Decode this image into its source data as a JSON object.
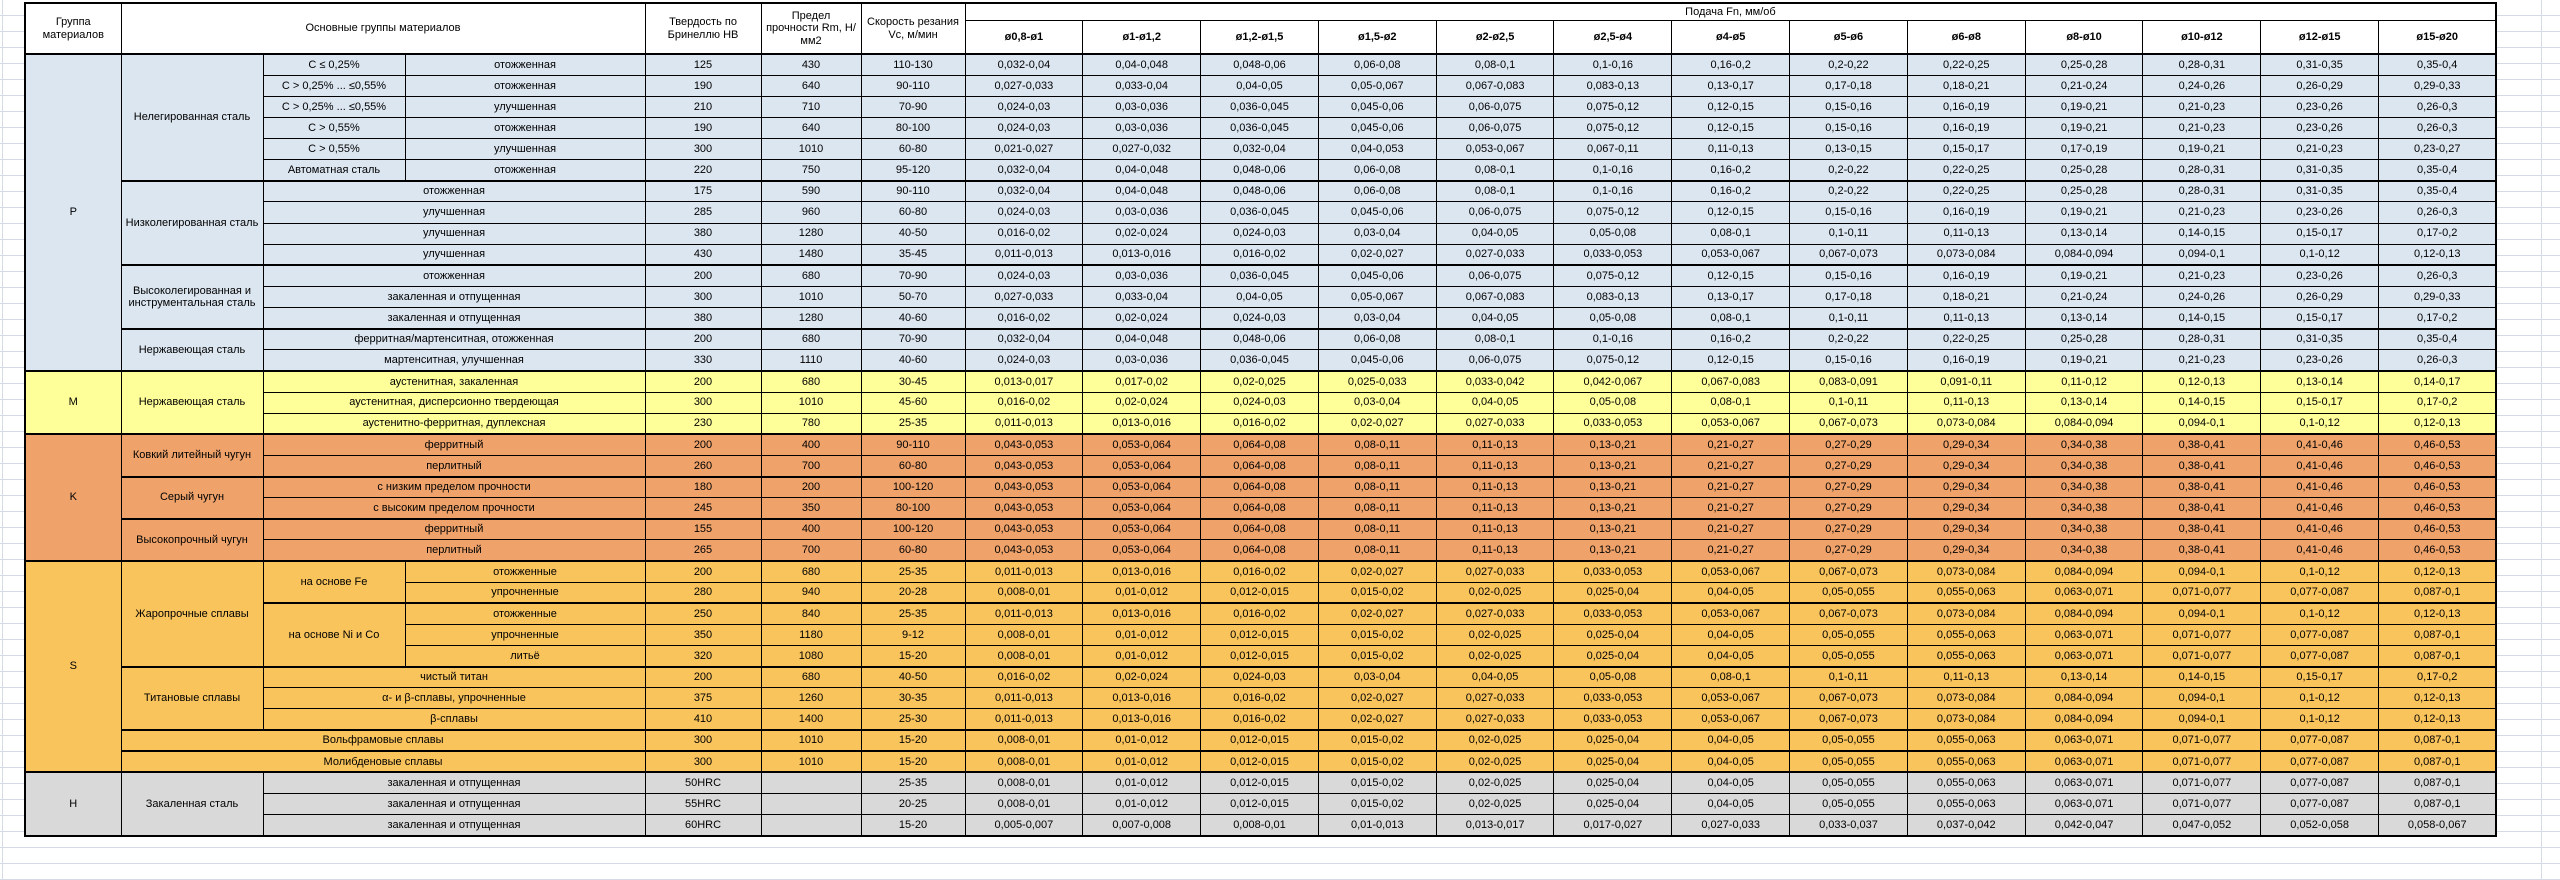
{
  "sheet": {
    "background": "#ffffff",
    "gridline_color": "#d4dbe4"
  },
  "table": {
    "header": {
      "group": "Группа материалов",
      "materials": "Основные группы материалов",
      "hardness": "Твердость по Бринеллю HB",
      "strength": "Предел прочности Rm, Н/мм2",
      "speed": "Скорость резания Vc, м/мин",
      "feed_title": "Подача Fn, мм/об",
      "feed_cols": [
        "ø0,8-ø1",
        "ø1-ø1,2",
        "ø1,2-ø1,5",
        "ø1,5-ø2",
        "ø2-ø2,5",
        "ø2,5-ø4",
        "ø4-ø5",
        "ø5-ø6",
        "ø6-ø8",
        "ø8-ø10",
        "ø10-ø12",
        "ø12-ø15",
        "ø15-ø20"
      ]
    },
    "colors": {
      "P": "#DCE6F1",
      "M": "#FFFF99",
      "K": "#EFA36B",
      "S": "#FAC45D",
      "H": "#D9D9D9"
    },
    "feed_sets": {
      "F1": [
        "0,032-0,04",
        "0,04-0,048",
        "0,048-0,06",
        "0,06-0,08",
        "0,08-0,1",
        "0,1-0,16",
        "0,16-0,2",
        "0,2-0,22",
        "0,22-0,25",
        "0,25-0,28",
        "0,28-0,31",
        "0,31-0,35",
        "0,35-0,4"
      ],
      "F2": [
        "0,027-0,033",
        "0,033-0,04",
        "0,04-0,05",
        "0,05-0,067",
        "0,067-0,083",
        "0,083-0,13",
        "0,13-0,17",
        "0,17-0,18",
        "0,18-0,21",
        "0,21-0,24",
        "0,24-0,26",
        "0,26-0,29",
        "0,29-0,33"
      ],
      "F3": [
        "0,024-0,03",
        "0,03-0,036",
        "0,036-0,045",
        "0,045-0,06",
        "0,06-0,075",
        "0,075-0,12",
        "0,12-0,15",
        "0,15-0,16",
        "0,16-0,19",
        "0,19-0,21",
        "0,21-0,23",
        "0,23-0,26",
        "0,26-0,3"
      ],
      "F4": [
        "0,021-0,027",
        "0,027-0,032",
        "0,032-0,04",
        "0,04-0,053",
        "0,053-0,067",
        "0,067-0,11",
        "0,11-0,13",
        "0,13-0,15",
        "0,15-0,17",
        "0,17-0,19",
        "0,19-0,21",
        "0,21-0,23",
        "0,23-0,27"
      ],
      "F5": [
        "0,016-0,02",
        "0,02-0,024",
        "0,024-0,03",
        "0,03-0,04",
        "0,04-0,05",
        "0,05-0,08",
        "0,08-0,1",
        "0,1-0,11",
        "0,11-0,13",
        "0,13-0,14",
        "0,14-0,15",
        "0,15-0,17",
        "0,17-0,2"
      ],
      "F6": [
        "0,011-0,013",
        "0,013-0,016",
        "0,016-0,02",
        "0,02-0,027",
        "0,027-0,033",
        "0,033-0,053",
        "0,053-0,067",
        "0,067-0,073",
        "0,073-0,084",
        "0,084-0,094",
        "0,094-0,1",
        "0,1-0,12",
        "0,12-0,13"
      ],
      "FM1": [
        "0,013-0,017",
        "0,017-0,02",
        "0,02-0,025",
        "0,025-0,033",
        "0,033-0,042",
        "0,042-0,067",
        "0,067-0,083",
        "0,083-0,091",
        "0,091-0,11",
        "0,11-0,12",
        "0,12-0,13",
        "0,13-0,14",
        "0,14-0,17"
      ],
      "FK": [
        "0,043-0,053",
        "0,053-0,064",
        "0,064-0,08",
        "0,08-0,11",
        "0,11-0,13",
        "0,13-0,21",
        "0,21-0,27",
        "0,27-0,29",
        "0,29-0,34",
        "0,34-0,38",
        "0,38-0,41",
        "0,41-0,46",
        "0,46-0,53"
      ],
      "FS2": [
        "0,008-0,01",
        "0,01-0,012",
        "0,012-0,015",
        "0,015-0,02",
        "0,02-0,025",
        "0,025-0,04",
        "0,04-0,05",
        "0,05-0,055",
        "0,055-0,063",
        "0,063-0,071",
        "0,071-0,077",
        "0,077-0,087",
        "0,087-0,1"
      ],
      "FH3": [
        "0,005-0,007",
        "0,007-0,008",
        "0,008-0,01",
        "0,01-0,013",
        "0,013-0,017",
        "0,017-0,027",
        "0,027-0,033",
        "0,033-0,037",
        "0,037-0,042",
        "0,042-0,047",
        "0,047-0,052",
        "0,052-0,058",
        "0,058-0,067"
      ]
    },
    "rows": [
      {
        "g": "P",
        "c": [
          {
            "t": "P",
            "rs": 15,
            "n": "group-label-p"
          },
          {
            "t": "Нелегированная сталь",
            "rs": 6
          },
          {
            "t": "C ≤ 0,25%"
          },
          {
            "t": "отожженная"
          }
        ],
        "v": [
          "125",
          "430",
          "110-130"
        ],
        "f": "F1"
      },
      {
        "g": "P",
        "c": [
          {
            "t": "C > 0,25% ... ≤0,55%"
          },
          {
            "t": "отожженная"
          }
        ],
        "v": [
          "190",
          "640",
          "90-110"
        ],
        "f": "F2"
      },
      {
        "g": "P",
        "c": [
          {
            "t": "C > 0,25% ... ≤0,55%"
          },
          {
            "t": "улучшенная"
          }
        ],
        "v": [
          "210",
          "710",
          "70-90"
        ],
        "f": "F3"
      },
      {
        "g": "P",
        "c": [
          {
            "t": "C > 0,55%"
          },
          {
            "t": "отожженная"
          }
        ],
        "v": [
          "190",
          "640",
          "80-100"
        ],
        "f": "F3"
      },
      {
        "g": "P",
        "c": [
          {
            "t": "C > 0,55%"
          },
          {
            "t": "улучшенная"
          }
        ],
        "v": [
          "300",
          "1010",
          "60-80"
        ],
        "f": "F4"
      },
      {
        "g": "P",
        "c": [
          {
            "t": "Автоматная сталь"
          },
          {
            "t": "отожженная"
          }
        ],
        "v": [
          "220",
          "750",
          "95-120"
        ],
        "f": "F1"
      },
      {
        "g": "P",
        "t2": 1,
        "c": [
          {
            "t": "Низколегированная сталь",
            "rs": 4
          },
          {
            "t": "отожженная",
            "cs": 2
          }
        ],
        "v": [
          "175",
          "590",
          "90-110"
        ],
        "f": "F1"
      },
      {
        "g": "P",
        "c": [
          {
            "t": "улучшенная",
            "cs": 2
          }
        ],
        "v": [
          "285",
          "960",
          "60-80"
        ],
        "f": "F3"
      },
      {
        "g": "P",
        "c": [
          {
            "t": "улучшенная",
            "cs": 2
          }
        ],
        "v": [
          "380",
          "1280",
          "40-50"
        ],
        "f": "F5"
      },
      {
        "g": "P",
        "c": [
          {
            "t": "улучшенная",
            "cs": 2
          }
        ],
        "v": [
          "430",
          "1480",
          "35-45"
        ],
        "f": "F6"
      },
      {
        "g": "P",
        "t2": 1,
        "c": [
          {
            "t": "Высоколегированная и инструментальная сталь",
            "rs": 3
          },
          {
            "t": "отожженная",
            "cs": 2
          }
        ],
        "v": [
          "200",
          "680",
          "70-90"
        ],
        "f": "F3"
      },
      {
        "g": "P",
        "c": [
          {
            "t": "закаленная и отпущенная",
            "cs": 2
          }
        ],
        "v": [
          "300",
          "1010",
          "50-70"
        ],
        "f": "F2"
      },
      {
        "g": "P",
        "c": [
          {
            "t": "закаленная и отпущенная",
            "cs": 2
          }
        ],
        "v": [
          "380",
          "1280",
          "40-60"
        ],
        "f": "F5"
      },
      {
        "g": "P",
        "t2": 1,
        "c": [
          {
            "t": "Нержавеющая сталь",
            "rs": 2
          },
          {
            "t": "ферритная/мартенситная, отожженная",
            "cs": 2
          }
        ],
        "v": [
          "200",
          "680",
          "70-90"
        ],
        "f": "F1"
      },
      {
        "g": "P",
        "c": [
          {
            "t": "мартенситная, улучшенная",
            "cs": 2
          }
        ],
        "v": [
          "330",
          "1110",
          "40-60"
        ],
        "f": "F3"
      },
      {
        "g": "M",
        "t2": 1,
        "c": [
          {
            "t": "M",
            "rs": 3,
            "n": "group-label-m"
          },
          {
            "t": "Нержавеющая сталь",
            "rs": 3
          },
          {
            "t": "аустенитная, закаленная",
            "cs": 2
          }
        ],
        "v": [
          "200",
          "680",
          "30-45"
        ],
        "f": "FM1"
      },
      {
        "g": "M",
        "c": [
          {
            "t": "аустенитная, дисперсионно твердеющая",
            "cs": 2
          }
        ],
        "v": [
          "300",
          "1010",
          "45-60"
        ],
        "f": "F5"
      },
      {
        "g": "M",
        "c": [
          {
            "t": "аустенитно-ферритная, дуплексная",
            "cs": 2
          }
        ],
        "v": [
          "230",
          "780",
          "25-35"
        ],
        "f": "F6"
      },
      {
        "g": "K",
        "t2": 1,
        "c": [
          {
            "t": "K",
            "rs": 6,
            "n": "group-label-k"
          },
          {
            "t": "Ковкий литейный чугун",
            "rs": 2
          },
          {
            "t": "ферритный",
            "cs": 2
          }
        ],
        "v": [
          "200",
          "400",
          "90-110"
        ],
        "f": "FK"
      },
      {
        "g": "K",
        "c": [
          {
            "t": "перлитный",
            "cs": 2
          }
        ],
        "v": [
          "260",
          "700",
          "60-80"
        ],
        "f": "FK"
      },
      {
        "g": "K",
        "t2": 1,
        "c": [
          {
            "t": "Серый чугун",
            "rs": 2
          },
          {
            "t": "с низким пределом прочности",
            "cs": 2
          }
        ],
        "v": [
          "180",
          "200",
          "100-120"
        ],
        "f": "FK"
      },
      {
        "g": "K",
        "c": [
          {
            "t": "с высоким пределом прочности",
            "cs": 2
          }
        ],
        "v": [
          "245",
          "350",
          "80-100"
        ],
        "f": "FK"
      },
      {
        "g": "K",
        "t2": 1,
        "c": [
          {
            "t": "Высокопрочный чугун",
            "rs": 2
          },
          {
            "t": "ферритный",
            "cs": 2
          }
        ],
        "v": [
          "155",
          "400",
          "100-120"
        ],
        "f": "FK"
      },
      {
        "g": "K",
        "c": [
          {
            "t": "перлитный",
            "cs": 2
          }
        ],
        "v": [
          "265",
          "700",
          "60-80"
        ],
        "f": "FK"
      },
      {
        "g": "S",
        "t2": 1,
        "c": [
          {
            "t": "S",
            "rs": 10,
            "n": "group-label-s"
          },
          {
            "t": "Жаропрочные сплавы",
            "rs": 5
          },
          {
            "t": "на основе Fe",
            "rs": 2
          },
          {
            "t": "отожженные"
          }
        ],
        "v": [
          "200",
          "680",
          "25-35"
        ],
        "f": "F6"
      },
      {
        "g": "S",
        "c": [
          {
            "t": "упрочненные"
          }
        ],
        "v": [
          "280",
          "940",
          "20-28"
        ],
        "f": "FS2"
      },
      {
        "g": "S",
        "t2": 1,
        "c": [
          {
            "t": "на основе Ni и Co",
            "rs": 3
          },
          {
            "t": "отожженные"
          }
        ],
        "v": [
          "250",
          "840",
          "25-35"
        ],
        "f": "F6"
      },
      {
        "g": "S",
        "c": [
          {
            "t": "упрочненные"
          }
        ],
        "v": [
          "350",
          "1180",
          "9-12"
        ],
        "f": "FS2"
      },
      {
        "g": "S",
        "c": [
          {
            "t": "литьё"
          }
        ],
        "v": [
          "320",
          "1080",
          "15-20"
        ],
        "f": "FS2"
      },
      {
        "g": "S",
        "t2": 1,
        "c": [
          {
            "t": "Титановые сплавы",
            "rs": 3
          },
          {
            "t": "чистый титан",
            "cs": 2
          }
        ],
        "v": [
          "200",
          "680",
          "40-50"
        ],
        "f": "F5"
      },
      {
        "g": "S",
        "c": [
          {
            "t": "α- и β-сплавы, упрочненные",
            "cs": 2
          }
        ],
        "v": [
          "375",
          "1260",
          "30-35"
        ],
        "f": "F6"
      },
      {
        "g": "S",
        "c": [
          {
            "t": "β-сплавы",
            "cs": 2
          }
        ],
        "v": [
          "410",
          "1400",
          "25-30"
        ],
        "f": "F6"
      },
      {
        "g": "S",
        "t2": 1,
        "c": [
          {
            "t": "Вольфрамовые сплавы",
            "cs": 3
          }
        ],
        "v": [
          "300",
          "1010",
          "15-20"
        ],
        "f": "FS2"
      },
      {
        "g": "S",
        "t2": 1,
        "c": [
          {
            "t": "Молибденовые сплавы",
            "cs": 3
          }
        ],
        "v": [
          "300",
          "1010",
          "15-20"
        ],
        "f": "FS2"
      },
      {
        "g": "H",
        "t2": 1,
        "c": [
          {
            "t": "H",
            "rs": 3,
            "n": "group-label-h"
          },
          {
            "t": "Закаленная сталь",
            "rs": 3
          },
          {
            "t": "закаленная и отпущенная",
            "cs": 2
          }
        ],
        "v": [
          "50HRC",
          "",
          "25-35"
        ],
        "f": "FS2"
      },
      {
        "g": "H",
        "c": [
          {
            "t": "закаленная и отпущенная",
            "cs": 2
          }
        ],
        "v": [
          "55HRC",
          "",
          "20-25"
        ],
        "f": "FS2"
      },
      {
        "g": "H",
        "c": [
          {
            "t": "закаленная и отпущенная",
            "cs": 2
          }
        ],
        "v": [
          "60HRC",
          "",
          "15-20"
        ],
        "f": "FH3"
      }
    ]
  }
}
